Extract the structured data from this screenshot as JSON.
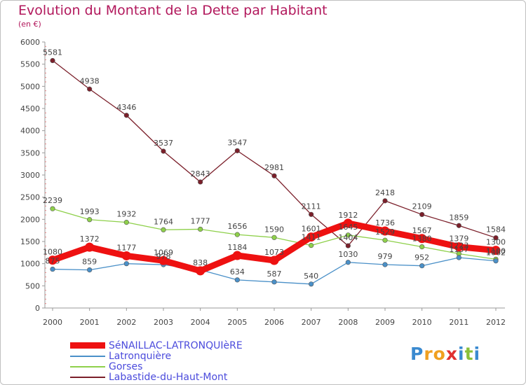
{
  "title": "Evolution du Montant de la Dette par Habitant",
  "subtitle": "(en €)",
  "brand": {
    "text": "Proxiti"
  },
  "chart_data": {
    "type": "line",
    "x": [
      "2000",
      "2001",
      "2002",
      "2003",
      "2004",
      "2005",
      "2006",
      "2007",
      "2008",
      "2009",
      "2010",
      "2011",
      "2012"
    ],
    "ylim": [
      0,
      6000
    ],
    "yticks": [
      0,
      500,
      1000,
      1500,
      2000,
      2500,
      3000,
      3500,
      4000,
      4500,
      5000,
      5500,
      6000
    ],
    "grid": false,
    "legend_position": "bottom",
    "series": [
      {
        "name": "SéNAILLAC-LATRONQUIèRE",
        "color": "#ee1111",
        "values": [
          1080,
          1372,
          1177,
          1069,
          838,
          1184,
          1073,
          1601,
          1912,
          1736,
          1567,
          1379,
          1300
        ],
        "labels": [
          "1080",
          "1372",
          "1177",
          "1069",
          "838",
          "1184",
          "1073",
          "1601",
          "1912",
          "1736",
          "1567",
          "1379",
          "1300"
        ]
      },
      {
        "name": "Latronquière",
        "color": "#4a90c8",
        "values": [
          875,
          859,
          1000,
          978,
          860,
          634,
          587,
          540,
          1030,
          979,
          952,
          1137,
          1062
        ],
        "labels": [
          "875",
          "859",
          "",
          "978",
          "",
          "634",
          "587",
          "540",
          "1030",
          "979",
          "952",
          "1137",
          "1062"
        ]
      },
      {
        "name": "Gorses",
        "color": "#8ed04a",
        "values": [
          2239,
          1993,
          1932,
          1764,
          1777,
          1656,
          1590,
          1411,
          1645,
          1529,
          1380,
          1223,
          1100
        ],
        "labels": [
          "2239",
          "1993",
          "1932",
          "1764",
          "1777",
          "1656",
          "1590",
          "1411",
          "1645",
          "1529",
          "1380",
          "1223",
          "1100"
        ]
      },
      {
        "name": "Labastide-du-Haut-Mont",
        "color": "#7b1f2a",
        "values": [
          5581,
          4938,
          4346,
          3537,
          2843,
          3547,
          2981,
          2111,
          1404,
          2418,
          2109,
          1859,
          1584
        ],
        "labels": [
          "5581",
          "4938",
          "4346",
          "3537",
          "2843",
          "3547",
          "2981",
          "2111",
          "1404",
          "2418",
          "2109",
          "1859",
          "1584"
        ]
      }
    ]
  }
}
